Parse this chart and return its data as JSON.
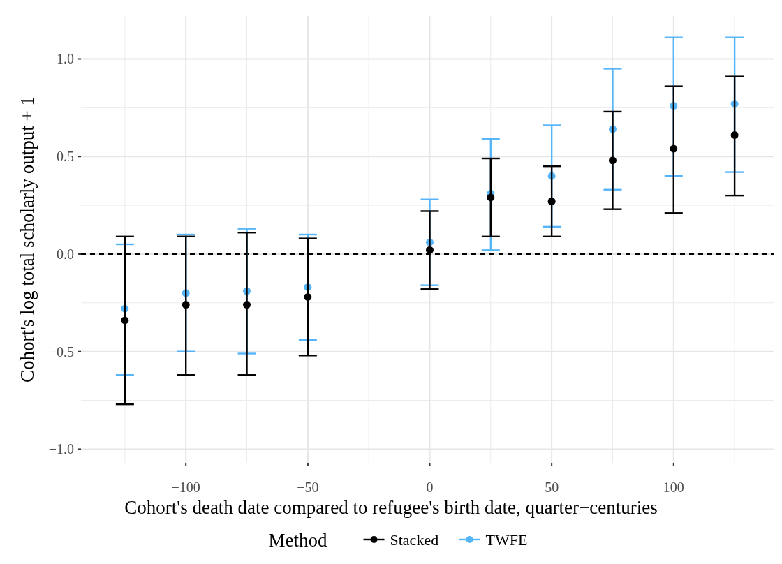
{
  "chart_data": {
    "type": "scatter",
    "xlabel": "Cohort's death date compared to refugee's birth date, quarter−centuries",
    "ylabel": "Cohort's log total scholarly output + 1",
    "legend_title": "Method",
    "legend": "bottom",
    "grid": true,
    "marker": "circle",
    "x": [
      -125,
      -100,
      -75,
      -50,
      0,
      25,
      50,
      75,
      100,
      125
    ],
    "xlim": [
      -143,
      141
    ],
    "xticks": [
      {
        "value": -100,
        "label": "−100"
      },
      {
        "value": -50,
        "label": "−50"
      },
      0,
      50,
      100
    ],
    "ylim": [
      -1.07,
      1.22
    ],
    "yticks": [
      {
        "value": -1,
        "label": "−1.0"
      },
      {
        "value": -0.5,
        "label": "−0.5"
      },
      {
        "value": 0,
        "label": "0.0"
      },
      0.5,
      {
        "value": 1,
        "label": "1.0"
      }
    ],
    "ref_lines": [
      {
        "axis": "y",
        "value": 0,
        "color": "#000000",
        "line_style": "dashed"
      }
    ],
    "series": [
      {
        "name": "Stacked",
        "color": "#000000",
        "values": [
          -0.34,
          -0.26,
          -0.26,
          -0.22,
          0.02,
          0.29,
          0.27,
          0.48,
          0.54,
          0.61
        ],
        "errors": [
          [
            -0.77,
            0.09
          ],
          [
            -0.62,
            0.09
          ],
          [
            -0.62,
            0.11
          ],
          [
            -0.52,
            0.08
          ],
          [
            -0.18,
            0.22
          ],
          [
            0.09,
            0.49
          ],
          [
            0.09,
            0.45
          ],
          [
            0.23,
            0.73
          ],
          [
            0.21,
            0.86
          ],
          [
            0.3,
            0.91
          ]
        ]
      },
      {
        "name": "TWFE",
        "color": "#56b4f9",
        "values": [
          -0.28,
          -0.2,
          -0.19,
          -0.17,
          0.06,
          0.31,
          0.4,
          0.64,
          0.76,
          0.77
        ],
        "errors": [
          [
            -0.62,
            0.05
          ],
          [
            -0.5,
            0.1
          ],
          [
            -0.51,
            0.13
          ],
          [
            -0.44,
            0.1
          ],
          [
            -0.16,
            0.28
          ],
          [
            0.02,
            0.59
          ],
          [
            0.14,
            0.66
          ],
          [
            0.33,
            0.95
          ],
          [
            0.4,
            1.11
          ],
          [
            0.42,
            1.11
          ]
        ]
      }
    ]
  }
}
